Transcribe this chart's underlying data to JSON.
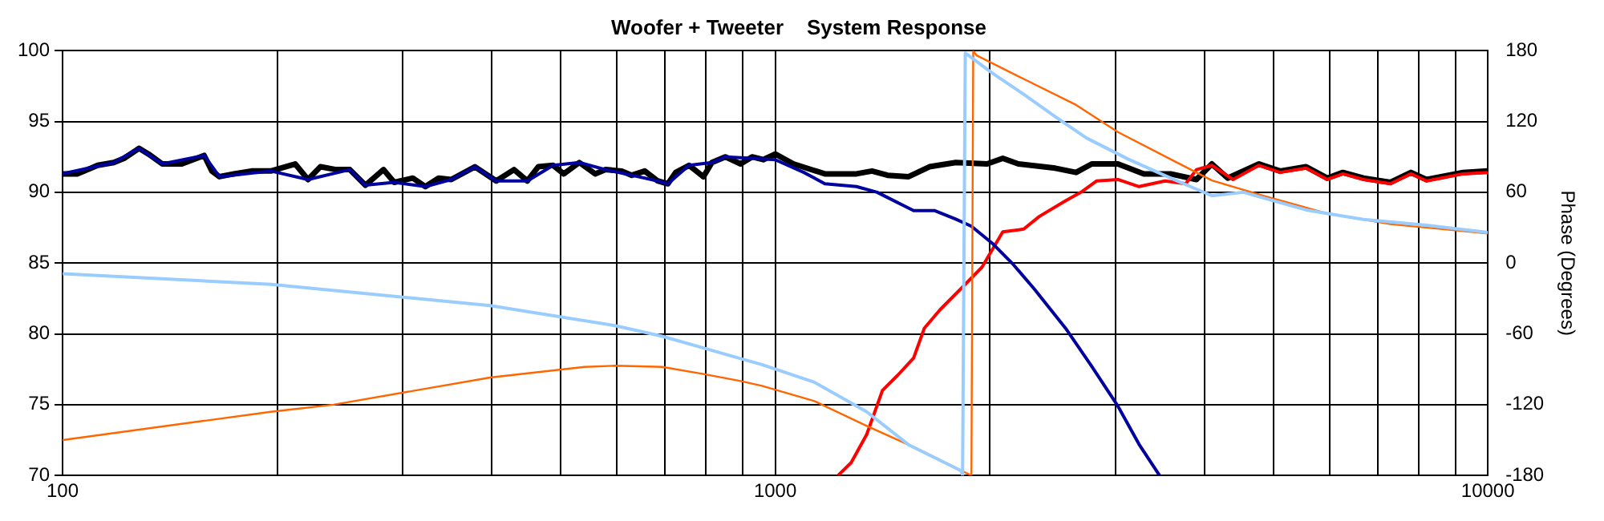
{
  "chart_data": {
    "type": "line",
    "title": "Woofer + Tweeter    System Response",
    "y2label": "Phase (Degrees)",
    "log": "x",
    "grid": true,
    "legend": false,
    "marker": "none",
    "line_style": "solid",
    "xlim": [
      100,
      10000
    ],
    "xticks": [
      100,
      {
        "value": 200,
        "label": null
      },
      {
        "value": 300,
        "label": null
      },
      {
        "value": 400,
        "label": null
      },
      {
        "value": 500,
        "label": null
      },
      {
        "value": 600,
        "label": null
      },
      {
        "value": 700,
        "label": null
      },
      {
        "value": 800,
        "label": null
      },
      {
        "value": 900,
        "label": null
      },
      1000,
      {
        "value": 2000,
        "label": null
      },
      {
        "value": 3000,
        "label": null
      },
      {
        "value": 4000,
        "label": null
      },
      {
        "value": 5000,
        "label": null
      },
      {
        "value": 6000,
        "label": null
      },
      {
        "value": 7000,
        "label": null
      },
      {
        "value": 8000,
        "label": null
      },
      {
        "value": 9000,
        "label": null
      },
      10000
    ],
    "ylim": [
      70,
      100
    ],
    "yticks": [
      70,
      75,
      80,
      85,
      90,
      95,
      100
    ],
    "y2lim": [
      -180,
      180
    ],
    "y2ticks": [
      -180,
      -120,
      -60,
      0,
      60,
      120,
      180
    ],
    "series": [
      {
        "color": "#99ccff",
        "axis": "y2",
        "x": [
          100,
          196,
          398,
          596,
          694,
          793,
          894,
          958,
          1135,
          1344,
          1539,
          1823,
          1832,
          1848,
          2016,
          2232,
          2472,
          2733,
          3130,
          3587,
          4100,
          4540,
          5560,
          6690,
          8200,
          10000
        ],
        "values": [
          -9,
          -18,
          -36,
          -53,
          -62,
          -72,
          -81,
          -86,
          -101,
          -126,
          -154,
          -176,
          -180,
          178,
          161,
          143,
          124,
          106,
          88,
          72,
          57,
          60,
          45,
          37,
          32,
          26
        ]
      },
      {
        "color": "#ff6600",
        "axis": "y2",
        "x": [
          100,
          196,
          240,
          398,
          540,
          596,
          694,
          793,
          894,
          958,
          1135,
          1344,
          1592,
          1885,
          1896,
          1917,
          2232,
          2644,
          3026,
          3587,
          4100,
          4850,
          5950,
          7300,
          10000
        ],
        "values": [
          -150,
          -126,
          -120,
          -97,
          -88,
          -87,
          -88,
          -94,
          -100,
          -104,
          -117,
          -138,
          -158,
          -180,
          180,
          176,
          156,
          134,
          111,
          88,
          70,
          57,
          42,
          33,
          25
        ]
      },
      {
        "color": "#0000a0",
        "x": [
          100,
          118,
          128,
          138,
          158,
          166,
          196,
          221,
          253,
          266,
          292,
          323,
          351,
          379,
          406,
          449,
          488,
          531,
          578,
          629,
          684,
          707,
          757,
          815,
          851,
          928,
          1000,
          1097,
          1174,
          1300,
          1390,
          1564,
          1675,
          1792,
          1885,
          2016,
          2158,
          2307,
          2555,
          2781,
          3026,
          3240,
          3462
        ],
        "values": [
          91.3,
          92.1,
          93.1,
          92.0,
          92.6,
          91.1,
          91.5,
          90.9,
          91.6,
          90.5,
          90.7,
          90.4,
          90.9,
          91.8,
          90.8,
          90.8,
          91.9,
          92.1,
          91.6,
          91.2,
          90.8,
          90.6,
          91.9,
          92.1,
          92.5,
          92.4,
          92.3,
          91.4,
          90.6,
          90.4,
          90.0,
          88.7,
          88.7,
          88.1,
          87.6,
          86.4,
          84.9,
          83.2,
          80.4,
          77.7,
          74.9,
          72.2,
          70.0
        ]
      },
      {
        "color": "#ff0000",
        "x": [
          1225,
          1278,
          1344,
          1414,
          1487,
          1564,
          1619,
          1703,
          1823,
          1950,
          2086,
          2232,
          2349,
          2555,
          2686,
          2826,
          3026,
          3240,
          3524,
          3767,
          3900,
          4100,
          4390,
          4774,
          5110,
          5560,
          5950,
          6260,
          6690,
          7300,
          7800,
          8200,
          8600,
          9230,
          10000
        ],
        "values": [
          70.0,
          70.9,
          72.9,
          76.0,
          77.1,
          78.3,
          80.4,
          81.7,
          83.2,
          84.7,
          87.2,
          87.4,
          88.3,
          89.4,
          90.0,
          90.8,
          90.9,
          90.4,
          90.8,
          90.6,
          91.6,
          91.9,
          90.9,
          91.9,
          91.4,
          91.7,
          90.9,
          91.3,
          90.9,
          90.6,
          91.3,
          90.8,
          91.0,
          91.3,
          91.4
        ]
      },
      {
        "color": "#000000",
        "x": [
          100,
          105,
          112,
          118,
          122,
          128,
          132,
          138,
          147,
          158,
          162,
          166,
          174,
          184,
          196,
          212,
          221,
          230,
          242,
          253,
          266,
          282,
          292,
          310,
          323,
          337,
          351,
          379,
          406,
          430,
          449,
          465,
          488,
          505,
          531,
          559,
          578,
          609,
          629,
          656,
          684,
          707,
          725,
          757,
          793,
          815,
          851,
          894,
          928,
          962,
          1000,
          1061,
          1174,
          1300,
          1367,
          1438,
          1539,
          1646,
          1792,
          1983,
          2086,
          2194,
          2472,
          2644,
          2781,
          3026,
          3291,
          3587,
          3900,
          4100,
          4315,
          4774,
          5110,
          5560,
          5950,
          6260,
          6690,
          7300,
          7800,
          8200,
          8600,
          9230,
          10000
        ],
        "values": [
          91.3,
          91.3,
          91.9,
          92.1,
          92.4,
          93.1,
          92.7,
          92.0,
          92.0,
          92.6,
          91.5,
          91.1,
          91.3,
          91.5,
          91.5,
          92.0,
          90.9,
          91.8,
          91.6,
          91.6,
          90.5,
          91.6,
          90.7,
          91.0,
          90.4,
          91.0,
          90.9,
          91.8,
          90.8,
          91.6,
          90.8,
          91.8,
          91.9,
          91.3,
          92.1,
          91.3,
          91.6,
          91.5,
          91.2,
          91.5,
          90.8,
          90.6,
          91.4,
          91.9,
          91.1,
          92.1,
          92.5,
          92.0,
          92.5,
          92.3,
          92.7,
          92.0,
          91.3,
          91.3,
          91.5,
          91.2,
          91.1,
          91.8,
          92.1,
          92.0,
          92.4,
          92.0,
          91.7,
          91.4,
          92.0,
          92.0,
          91.3,
          91.3,
          90.9,
          92.0,
          91.0,
          92.0,
          91.5,
          91.8,
          91.0,
          91.4,
          91.0,
          90.7,
          91.4,
          90.9,
          91.1,
          91.4,
          91.5
        ]
      }
    ]
  }
}
